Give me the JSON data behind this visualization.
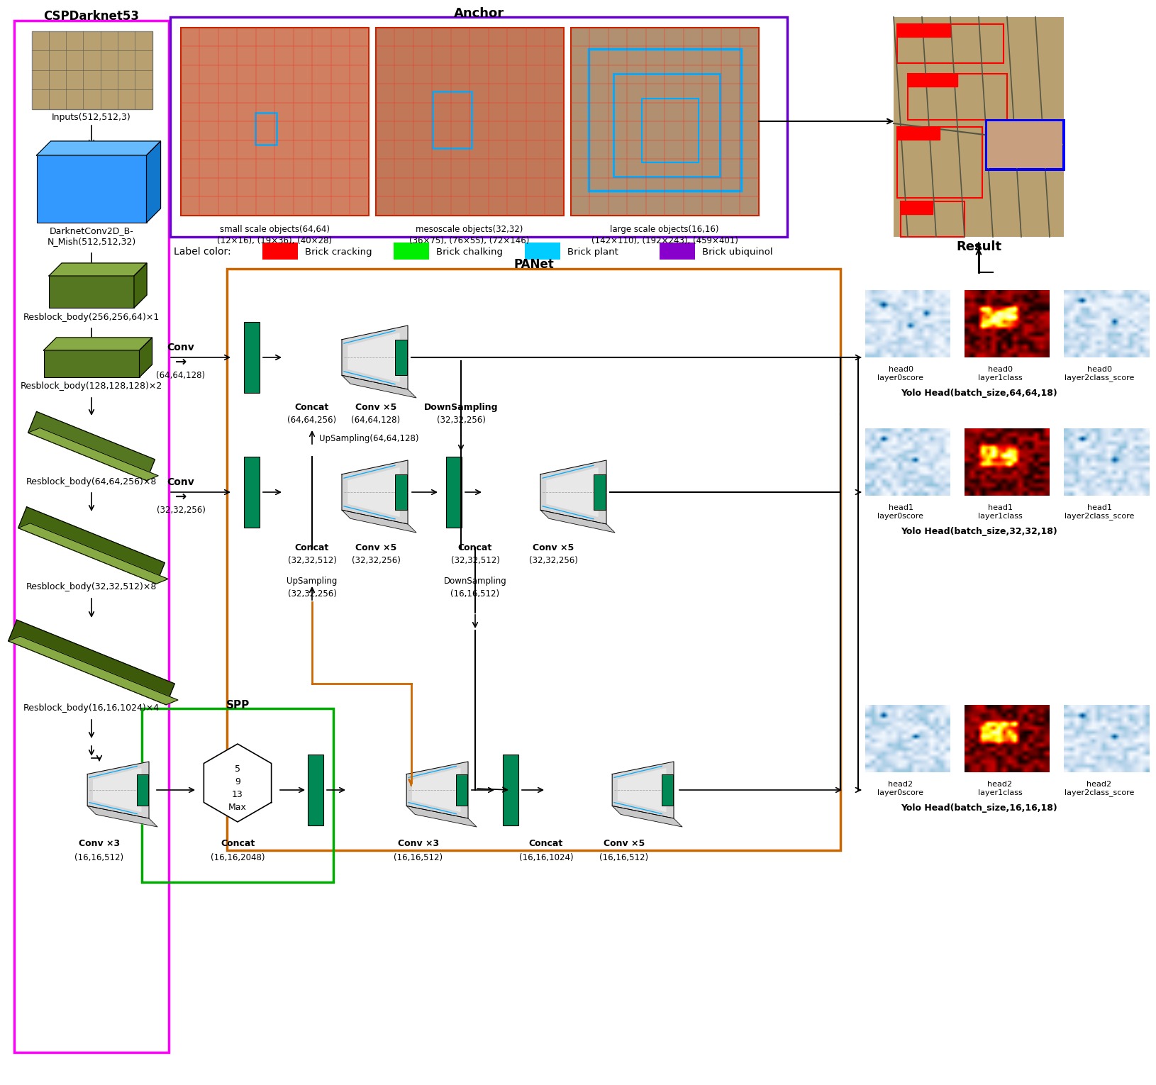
{
  "bg_color": "#ffffff",
  "csp_title": "CSPDarknet53",
  "anchor_title": "Anchor",
  "panet_title": "PANet",
  "spp_title": "SPP",
  "result_title": "Result",
  "label_color_title": "Label color:",
  "labels": [
    "Brick cracking",
    "Brick chalking",
    "Brick plant",
    "Brick ubiquinol"
  ],
  "label_colors": [
    "#ff0000",
    "#00ee00",
    "#00ccff",
    "#8800cc"
  ],
  "yolo_heads": [
    "Yolo Head(batch_size,64,64,18)",
    "Yolo Head(batch_size,32,32,18)",
    "Yolo Head(batch_size,16,16,18)"
  ],
  "head_labels": [
    [
      "head0\nlayer0score",
      "head0\nlayer1class",
      "head0\nlayer2class_score"
    ],
    [
      "head1\nlayer0score",
      "head1\nlayer1class",
      "head1\nlayer2class_score"
    ],
    [
      "head2\nlayer0score",
      "head2\nlayer1class",
      "head2\nlayer2class_score"
    ]
  ],
  "anchor_captions": [
    [
      "small scale objects(64,64)",
      "(12×16), (19×36), (40×28)"
    ],
    [
      "mesoscale objects(32,32)",
      "(36×75), (76×55), (72×146)"
    ],
    [
      "large scale objects(16,16)",
      "(142×110), (192×243), (459×401)"
    ]
  ],
  "csp_layers": [
    "Inputs(512,512,3)",
    "DarknetConv2D_B-\nN_Mish(512,512,32)",
    "Resblock_body(256,256,64)×1",
    "Resblock_body(128,128,128)×2",
    "Resblock_body(64,64,256)×8",
    "Resblock_body(32,32,512)×8",
    "Resblock_body(16,16,1024)×4"
  ]
}
